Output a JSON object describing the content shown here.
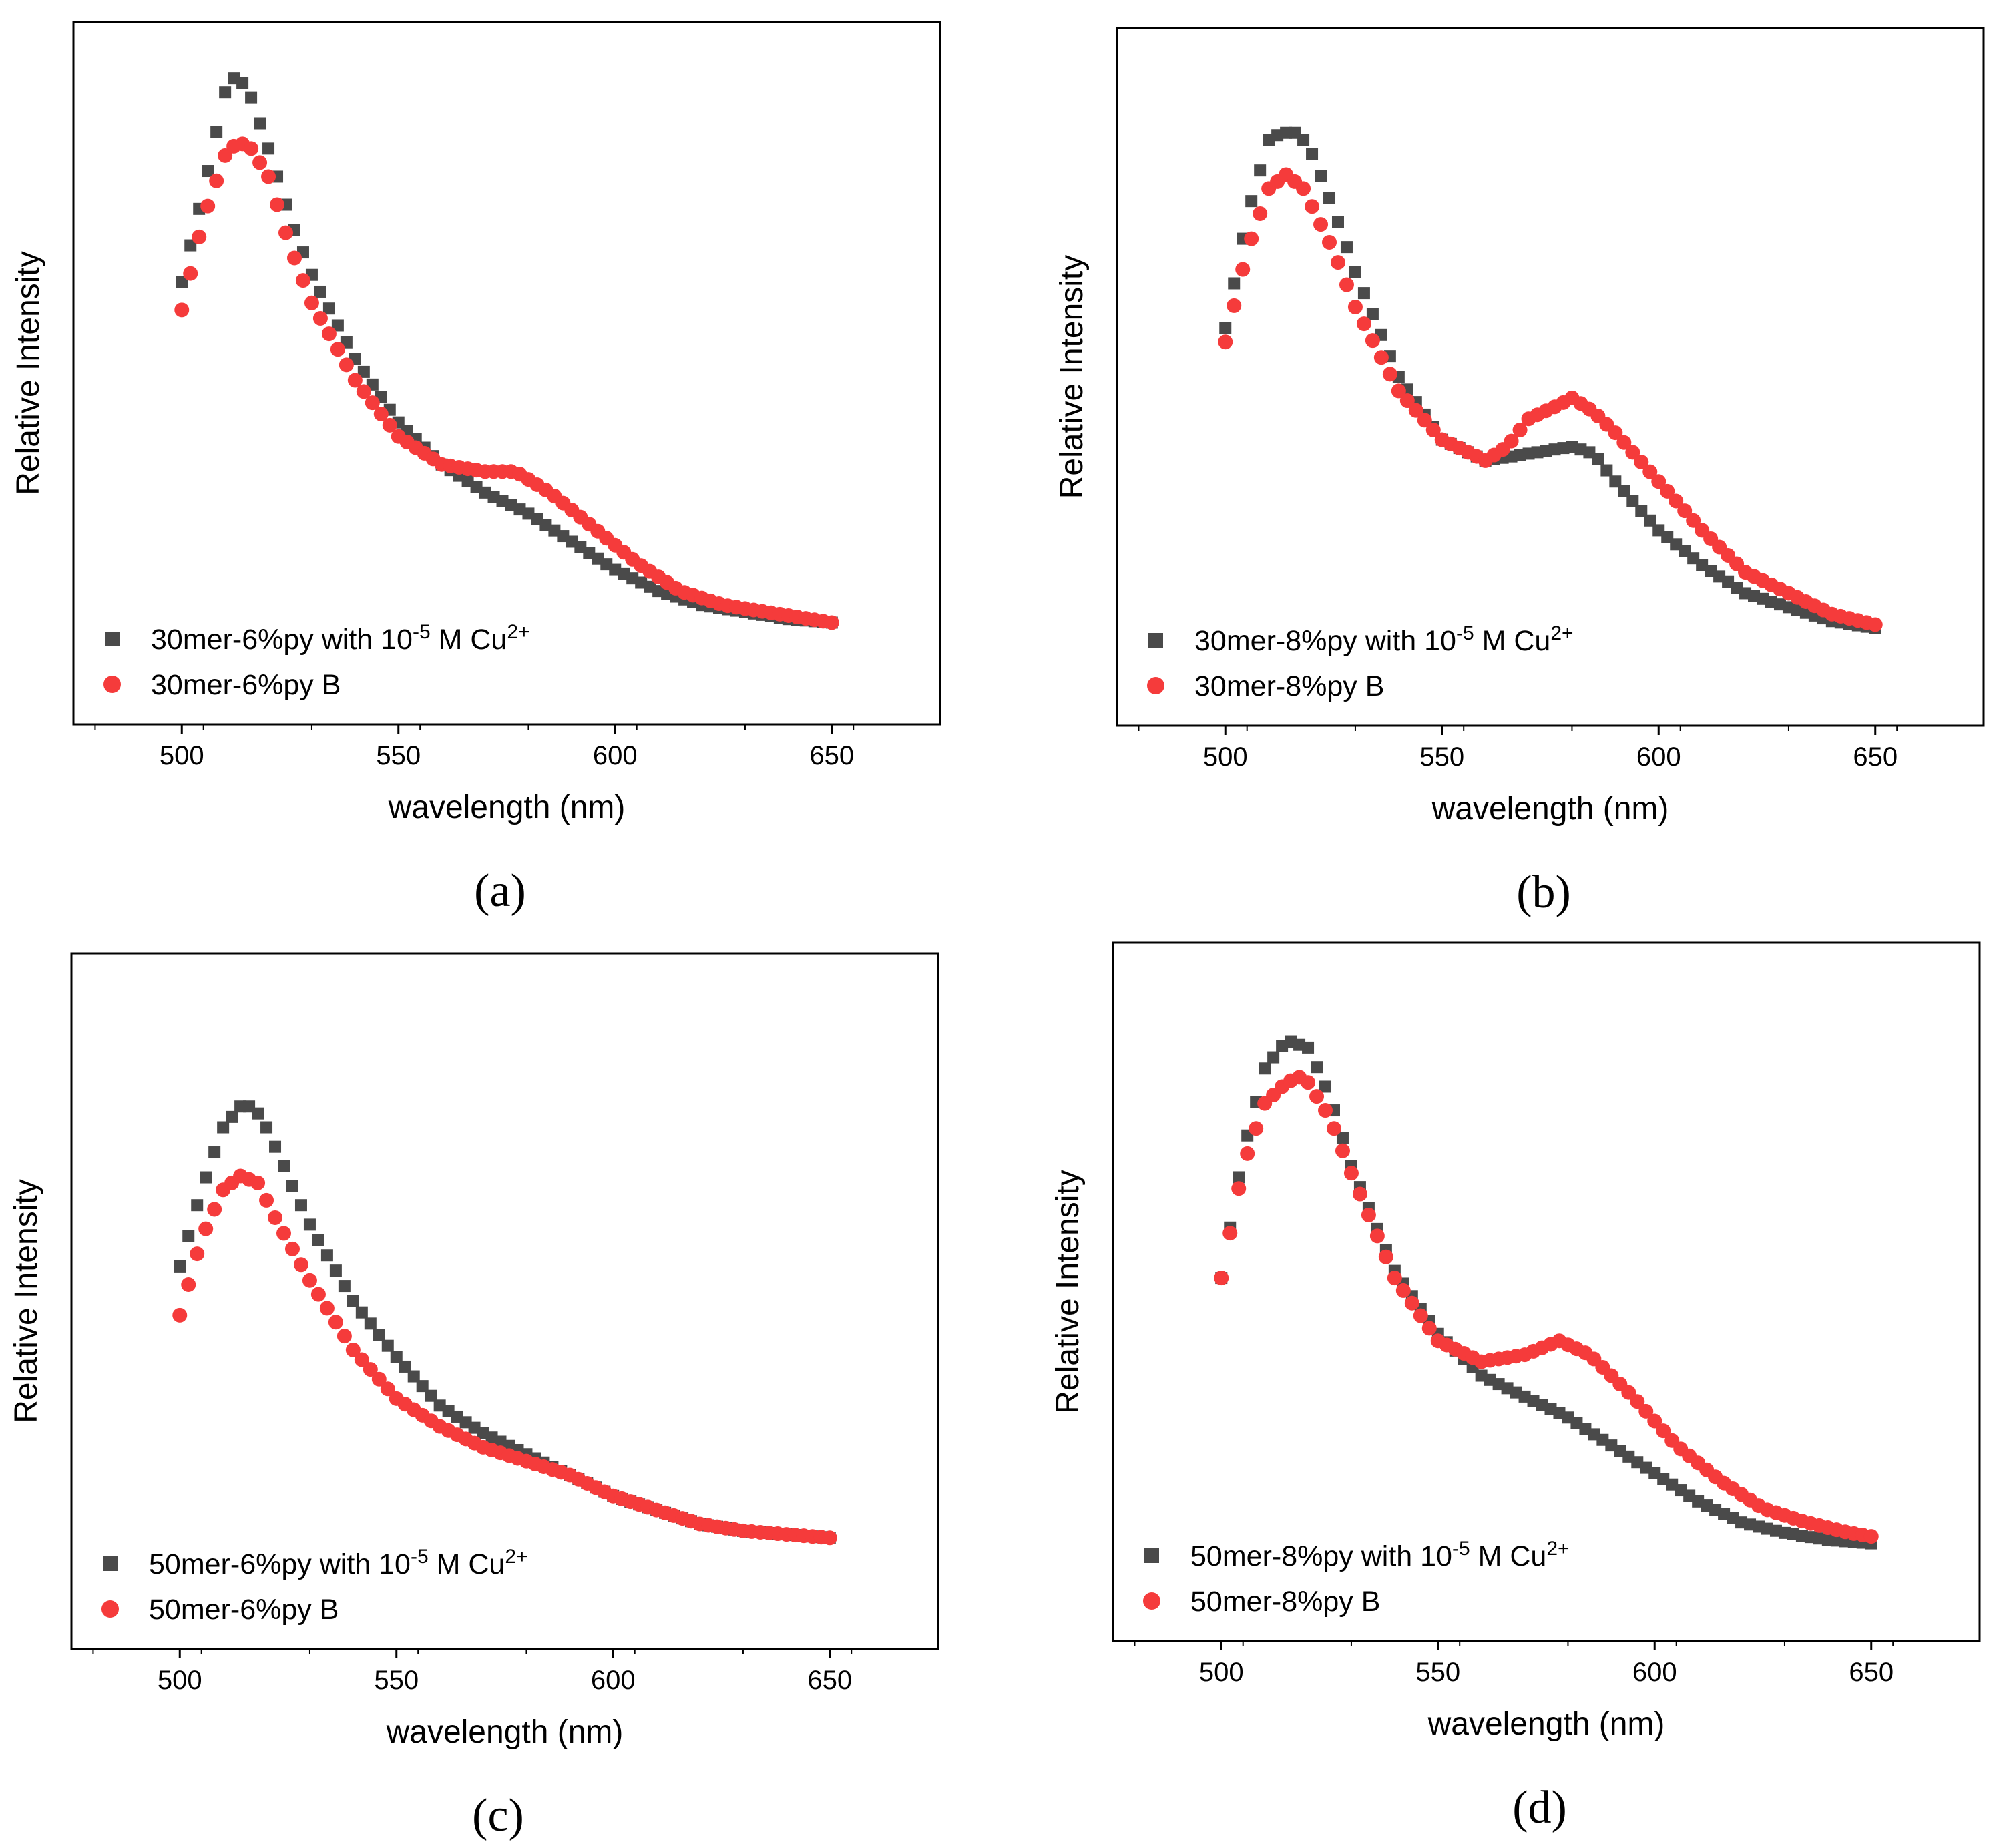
{
  "figure": {
    "colors": {
      "series_cu": "#4a4a4a",
      "series_b": "#f53b3b",
      "frame": "#000000"
    }
  },
  "chart_data": [
    {
      "type": "scatter",
      "panel_label": "(a)",
      "xlabel": "wavelength (nm)",
      "ylabel": "Relative Intensity",
      "xlim": [
        475,
        675
      ],
      "ylim": [
        0,
        1
      ],
      "xticks": [
        "500",
        "550",
        "600",
        "650"
      ],
      "legend_position": "bottom-left",
      "series": [
        {
          "name": "30mer-6%py with 10-5 M Cu2+",
          "label_parts": [
            "30mer-6%py with 10",
            "-5",
            " M Cu",
            "2+"
          ],
          "marker": "square",
          "points": [
            [
              500,
              0.63
            ],
            [
              505,
              0.76
            ],
            [
              510,
              0.9
            ],
            [
              512,
              0.92
            ],
            [
              515,
              0.91
            ],
            [
              520,
              0.82
            ],
            [
              525,
              0.72
            ],
            [
              530,
              0.64
            ],
            [
              540,
              0.52
            ],
            [
              550,
              0.43
            ],
            [
              560,
              0.37
            ],
            [
              570,
              0.33
            ],
            [
              580,
              0.3
            ],
            [
              590,
              0.26
            ],
            [
              600,
              0.22
            ],
            [
              610,
              0.19
            ],
            [
              620,
              0.17
            ],
            [
              630,
              0.16
            ],
            [
              640,
              0.15
            ],
            [
              650,
              0.145
            ]
          ]
        },
        {
          "name": "30mer-6%py B",
          "label_parts": [
            "30mer-6%py B"
          ],
          "marker": "circle",
          "points": [
            [
              500,
              0.59
            ],
            [
              505,
              0.72
            ],
            [
              510,
              0.81
            ],
            [
              513,
              0.83
            ],
            [
              516,
              0.82
            ],
            [
              520,
              0.78
            ],
            [
              525,
              0.68
            ],
            [
              530,
              0.6
            ],
            [
              540,
              0.49
            ],
            [
              550,
              0.41
            ],
            [
              560,
              0.37
            ],
            [
              570,
              0.36
            ],
            [
              577,
              0.36
            ],
            [
              585,
              0.33
            ],
            [
              595,
              0.28
            ],
            [
              605,
              0.23
            ],
            [
              615,
              0.19
            ],
            [
              625,
              0.17
            ],
            [
              635,
              0.16
            ],
            [
              645,
              0.15
            ],
            [
              650,
              0.145
            ]
          ]
        }
      ]
    },
    {
      "type": "scatter",
      "panel_label": "(b)",
      "xlabel": "wavelength (nm)",
      "ylabel": "Relative Intensity",
      "xlim": [
        475,
        675
      ],
      "ylim": [
        0,
        1
      ],
      "xticks": [
        "500",
        "550",
        "600",
        "650"
      ],
      "legend_position": "bottom-left",
      "series": [
        {
          "name": "30mer-8%py with 10-5 M Cu2+",
          "label_parts": [
            "30mer-8%py with 10",
            "-5",
            " M Cu",
            "2+"
          ],
          "marker": "square",
          "points": [
            [
              500,
              0.57
            ],
            [
              505,
              0.73
            ],
            [
              510,
              0.84
            ],
            [
              513,
              0.85
            ],
            [
              517,
              0.85
            ],
            [
              520,
              0.82
            ],
            [
              525,
              0.74
            ],
            [
              530,
              0.65
            ],
            [
              540,
              0.5
            ],
            [
              550,
              0.41
            ],
            [
              560,
              0.38
            ],
            [
              570,
              0.39
            ],
            [
              580,
              0.4
            ],
            [
              585,
              0.39
            ],
            [
              590,
              0.35
            ],
            [
              600,
              0.28
            ],
            [
              610,
              0.23
            ],
            [
              620,
              0.19
            ],
            [
              630,
              0.17
            ],
            [
              640,
              0.15
            ],
            [
              650,
              0.14
            ]
          ]
        },
        {
          "name": "30mer-8%py B",
          "label_parts": [
            "30mer-8%py B"
          ],
          "marker": "circle",
          "points": [
            [
              500,
              0.55
            ],
            [
              505,
              0.68
            ],
            [
              510,
              0.77
            ],
            [
              514,
              0.79
            ],
            [
              518,
              0.77
            ],
            [
              525,
              0.68
            ],
            [
              530,
              0.6
            ],
            [
              540,
              0.48
            ],
            [
              550,
              0.41
            ],
            [
              560,
              0.38
            ],
            [
              565,
              0.4
            ],
            [
              570,
              0.44
            ],
            [
              577,
              0.46
            ],
            [
              580,
              0.47
            ],
            [
              585,
              0.45
            ],
            [
              590,
              0.42
            ],
            [
              600,
              0.35
            ],
            [
              610,
              0.28
            ],
            [
              620,
              0.22
            ],
            [
              630,
              0.19
            ],
            [
              640,
              0.16
            ],
            [
              650,
              0.145
            ]
          ]
        }
      ]
    },
    {
      "type": "scatter",
      "panel_label": "(c)",
      "xlabel": "wavelength (nm)",
      "ylabel": "Relative Intensity",
      "xlim": [
        475,
        675
      ],
      "ylim": [
        0,
        1
      ],
      "xticks": [
        "500",
        "550",
        "600",
        "650"
      ],
      "legend_position": "bottom-left",
      "series": [
        {
          "name": "50mer-6%py with 10-5 M Cu2+",
          "label_parts": [
            "50mer-6%py with 10",
            "-5",
            " M Cu",
            "2+"
          ],
          "marker": "square",
          "points": [
            [
              500,
              0.55
            ],
            [
              505,
              0.66
            ],
            [
              510,
              0.75
            ],
            [
              514,
              0.78
            ],
            [
              517,
              0.78
            ],
            [
              520,
              0.75
            ],
            [
              525,
              0.68
            ],
            [
              530,
              0.61
            ],
            [
              540,
              0.5
            ],
            [
              550,
              0.42
            ],
            [
              560,
              0.35
            ],
            [
              570,
              0.31
            ],
            [
              580,
              0.28
            ],
            [
              590,
              0.25
            ],
            [
              600,
              0.22
            ],
            [
              610,
              0.2
            ],
            [
              620,
              0.18
            ],
            [
              630,
              0.17
            ],
            [
              640,
              0.165
            ],
            [
              650,
              0.16
            ]
          ]
        },
        {
          "name": "50mer-6%py B",
          "label_parts": [
            "50mer-6%py B"
          ],
          "marker": "circle",
          "points": [
            [
              500,
              0.48
            ],
            [
              505,
              0.59
            ],
            [
              510,
              0.66
            ],
            [
              514,
              0.68
            ],
            [
              518,
              0.67
            ],
            [
              522,
              0.62
            ],
            [
              530,
              0.53
            ],
            [
              540,
              0.43
            ],
            [
              550,
              0.36
            ],
            [
              560,
              0.32
            ],
            [
              570,
              0.29
            ],
            [
              580,
              0.27
            ],
            [
              590,
              0.25
            ],
            [
              600,
              0.22
            ],
            [
              610,
              0.2
            ],
            [
              620,
              0.18
            ],
            [
              630,
              0.17
            ],
            [
              640,
              0.165
            ],
            [
              650,
              0.16
            ]
          ]
        }
      ]
    },
    {
      "type": "scatter",
      "panel_label": "(d)",
      "xlabel": "wavelength (nm)",
      "ylabel": "Relative Intensity",
      "xlim": [
        475,
        675
      ],
      "ylim": [
        0,
        1
      ],
      "xticks": [
        "500",
        "550",
        "600",
        "650"
      ],
      "legend_position": "bottom-left",
      "series": [
        {
          "name": "50mer-8%py with 10-5 M Cu2+",
          "label_parts": [
            "50mer-8%py with 10",
            "-5",
            " M Cu",
            "2+"
          ],
          "marker": "square",
          "points": [
            [
              500,
              0.52
            ],
            [
              505,
              0.7
            ],
            [
              510,
              0.82
            ],
            [
              515,
              0.86
            ],
            [
              520,
              0.85
            ],
            [
              525,
              0.78
            ],
            [
              530,
              0.68
            ],
            [
              540,
              0.53
            ],
            [
              550,
              0.44
            ],
            [
              560,
              0.38
            ],
            [
              570,
              0.35
            ],
            [
              580,
              0.32
            ],
            [
              590,
              0.28
            ],
            [
              600,
              0.24
            ],
            [
              610,
              0.2
            ],
            [
              620,
              0.17
            ],
            [
              630,
              0.155
            ],
            [
              640,
              0.145
            ],
            [
              650,
              0.14
            ]
          ]
        },
        {
          "name": "50mer-8%py B",
          "label_parts": [
            "50mer-8%py B"
          ],
          "marker": "circle",
          "points": [
            [
              500,
              0.52
            ],
            [
              505,
              0.68
            ],
            [
              510,
              0.77
            ],
            [
              515,
              0.8
            ],
            [
              519,
              0.81
            ],
            [
              525,
              0.75
            ],
            [
              530,
              0.67
            ],
            [
              540,
              0.52
            ],
            [
              550,
              0.43
            ],
            [
              560,
              0.4
            ],
            [
              570,
              0.41
            ],
            [
              578,
              0.43
            ],
            [
              585,
              0.41
            ],
            [
              595,
              0.35
            ],
            [
              605,
              0.28
            ],
            [
              615,
              0.23
            ],
            [
              625,
              0.19
            ],
            [
              635,
              0.17
            ],
            [
              645,
              0.155
            ],
            [
              650,
              0.15
            ]
          ]
        }
      ]
    }
  ]
}
